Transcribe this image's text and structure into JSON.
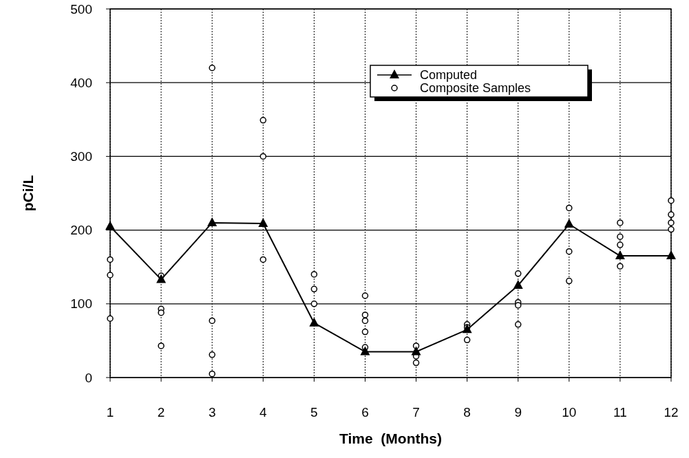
{
  "chart_data": {
    "type": "line",
    "xlabel": "Time  (Months)",
    "ylabel": "pCi/L",
    "x": [
      1,
      2,
      3,
      4,
      5,
      6,
      7,
      8,
      9,
      10,
      11,
      12
    ],
    "xlim": [
      1,
      12
    ],
    "xticks": [
      1,
      2,
      3,
      4,
      5,
      6,
      7,
      8,
      9,
      10,
      11,
      12
    ],
    "ylim": [
      0,
      500
    ],
    "yticks": [
      0,
      100,
      200,
      300,
      400,
      500
    ],
    "grid": true,
    "legend": "top right",
    "series": [
      {
        "name": "Computed",
        "type": "line",
        "color": "#000000",
        "marker": "triangle",
        "line_style": "solid",
        "values": [
          205,
          133,
          210,
          209,
          74,
          35,
          35,
          65,
          125,
          208,
          165,
          165
        ]
      },
      {
        "name": "Composite Samples",
        "type": "scatter",
        "color": "#000000",
        "marker": "circle",
        "x": [
          1,
          1,
          1,
          2,
          2,
          2,
          2,
          3,
          3,
          3,
          3,
          4,
          4,
          4,
          5,
          5,
          5,
          6,
          6,
          6,
          6,
          6,
          7,
          7,
          7,
          8,
          8,
          8,
          9,
          9,
          9,
          9,
          10,
          10,
          10,
          11,
          11,
          11,
          11,
          12,
          12,
          12,
          12
        ],
        "values": [
          160,
          139,
          80,
          138,
          93,
          88,
          43,
          420,
          77,
          31,
          5,
          349,
          300,
          160,
          140,
          120,
          100,
          111,
          85,
          77,
          62,
          41,
          43,
          29,
          20,
          72,
          68,
          51,
          141,
          102,
          98,
          72,
          230,
          171,
          131,
          210,
          191,
          180,
          151,
          240,
          221,
          210,
          201
        ]
      }
    ]
  }
}
